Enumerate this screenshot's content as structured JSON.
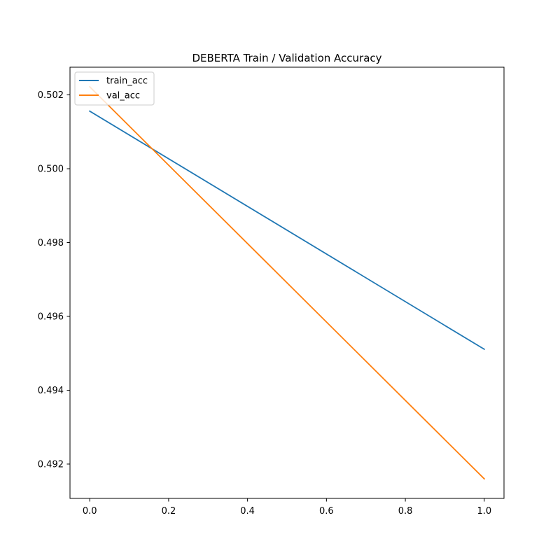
{
  "chart_data": {
    "type": "line",
    "title": "DEBERTA Train / Validation Accuracy",
    "xlabel": "",
    "ylabel": "",
    "x": [
      0.0,
      1.0
    ],
    "series": [
      {
        "name": "train_acc",
        "values": [
          0.50156,
          0.49511
        ],
        "color": "#1f77b4"
      },
      {
        "name": "val_acc",
        "values": [
          0.50222,
          0.4916
        ],
        "color": "#ff7f0e"
      }
    ],
    "xlim": [
      -0.05,
      1.05
    ],
    "ylim": [
      0.49107,
      0.50275
    ],
    "x_ticks": [
      "0.0",
      "0.2",
      "0.4",
      "0.6",
      "0.8",
      "1.0"
    ],
    "y_ticks": [
      "0.492",
      "0.494",
      "0.496",
      "0.498",
      "0.500",
      "0.502"
    ],
    "grid": false,
    "legend_position": "top-left"
  }
}
